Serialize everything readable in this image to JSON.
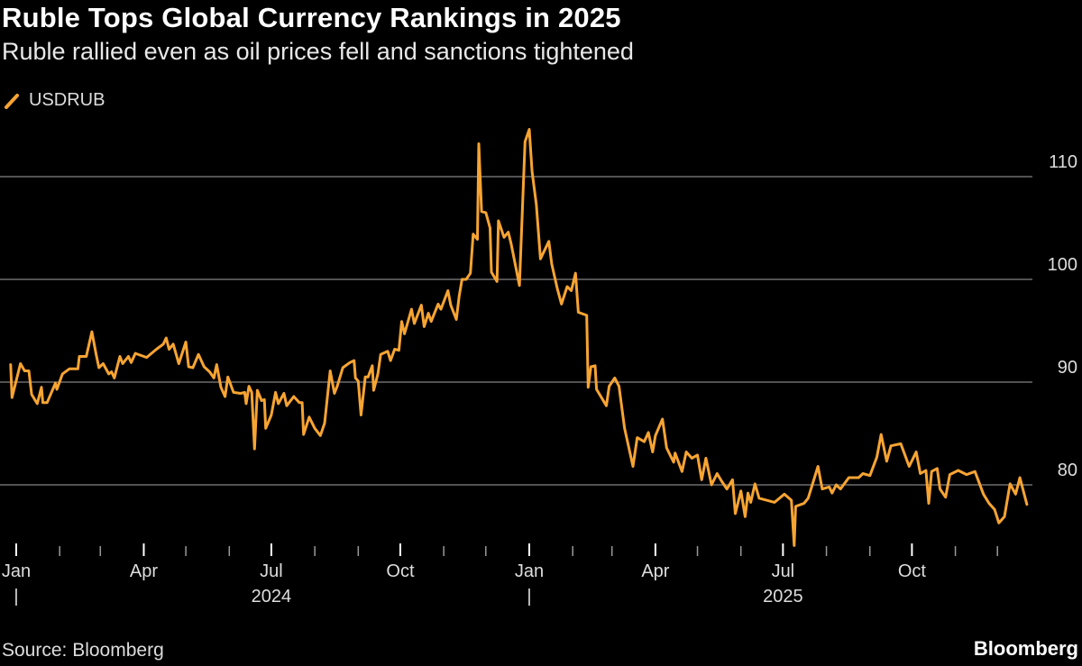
{
  "title": "Ruble Tops Global Currency Rankings in 2025",
  "subtitle": "Ruble rallied even as oil prices fell and sanctions tightened",
  "source": "Source: Bloomberg",
  "logo": "Bloomberg",
  "colors": {
    "series": "#f7a433",
    "grid": "#6e6e6e",
    "background": "#000000"
  },
  "legend_icon": "slash-line-icon",
  "chart_data": {
    "type": "line",
    "title": "Ruble Tops Global Currency Rankings in 2025",
    "xlabel": "",
    "ylabel": "",
    "ylim": [
      73,
      115
    ],
    "yticks": [
      80,
      90,
      100,
      110
    ],
    "ytick_labels": [
      "80",
      "90",
      "100",
      "110"
    ],
    "y_axis_side": "right",
    "grid": true,
    "legend_placement": "top-left",
    "xticks": [
      {
        "date": "2024-01-01",
        "label": "Jan",
        "year": "2024",
        "separator": "|"
      },
      {
        "date": "2024-04-01",
        "label": "Apr"
      },
      {
        "date": "2024-07-01",
        "label": "Jul",
        "year_label": "2024"
      },
      {
        "date": "2024-10-01",
        "label": "Oct"
      },
      {
        "date": "2025-01-01",
        "label": "Jan",
        "separator": "|"
      },
      {
        "date": "2025-04-01",
        "label": "Apr"
      },
      {
        "date": "2025-07-01",
        "label": "Jul",
        "year_label": "2025"
      },
      {
        "date": "2025-10-01",
        "label": "Oct"
      }
    ],
    "year_labels": [
      "2024",
      "2025"
    ],
    "series": [
      {
        "name": "USDRUB",
        "points": [
          [
            "2023-12-28",
            91.7
          ],
          [
            "2023-12-29",
            88.5
          ],
          [
            "2024-01-04",
            91.8
          ],
          [
            "2024-01-07",
            91.1
          ],
          [
            "2024-01-10",
            91.1
          ],
          [
            "2024-01-12",
            88.8
          ],
          [
            "2024-01-16",
            87.9
          ],
          [
            "2024-01-19",
            89.5
          ],
          [
            "2024-01-20",
            88.0
          ],
          [
            "2024-01-23",
            88.0
          ],
          [
            "2024-01-29",
            89.9
          ],
          [
            "2024-01-30",
            89.3
          ],
          [
            "2024-02-03",
            90.8
          ],
          [
            "2024-02-08",
            91.3
          ],
          [
            "2024-02-14",
            91.3
          ],
          [
            "2024-02-15",
            92.5
          ],
          [
            "2024-02-20",
            92.5
          ],
          [
            "2024-02-24",
            94.9
          ],
          [
            "2024-02-27",
            92.7
          ],
          [
            "2024-02-29",
            91.4
          ],
          [
            "2024-03-03",
            91.8
          ],
          [
            "2024-03-07",
            90.8
          ],
          [
            "2024-03-09",
            91.0
          ],
          [
            "2024-03-11",
            90.4
          ],
          [
            "2024-03-15",
            92.5
          ],
          [
            "2024-03-17",
            91.8
          ],
          [
            "2024-03-21",
            92.5
          ],
          [
            "2024-03-23",
            91.9
          ],
          [
            "2024-03-26",
            92.8
          ],
          [
            "2024-04-03",
            92.4
          ],
          [
            "2024-04-10",
            93.2
          ],
          [
            "2024-04-15",
            93.7
          ],
          [
            "2024-04-17",
            94.3
          ],
          [
            "2024-04-19",
            93.2
          ],
          [
            "2024-04-22",
            93.7
          ],
          [
            "2024-04-26",
            91.8
          ],
          [
            "2024-05-01",
            93.9
          ],
          [
            "2024-05-03",
            91.5
          ],
          [
            "2024-05-06",
            91.4
          ],
          [
            "2024-05-10",
            92.7
          ],
          [
            "2024-05-14",
            91.5
          ],
          [
            "2024-05-18",
            91.0
          ],
          [
            "2024-05-21",
            90.4
          ],
          [
            "2024-05-23",
            91.7
          ],
          [
            "2024-05-26",
            89.5
          ],
          [
            "2024-05-29",
            88.6
          ],
          [
            "2024-05-31",
            90.5
          ],
          [
            "2024-06-04",
            89.0
          ],
          [
            "2024-06-09",
            88.9
          ],
          [
            "2024-06-12",
            89.0
          ],
          [
            "2024-06-13",
            87.9
          ],
          [
            "2024-06-15",
            89.6
          ],
          [
            "2024-06-17",
            89.0
          ],
          [
            "2024-06-19",
            83.5
          ],
          [
            "2024-06-21",
            89.2
          ],
          [
            "2024-06-24",
            88.2
          ],
          [
            "2024-06-26",
            88.3
          ],
          [
            "2024-06-27",
            85.5
          ],
          [
            "2024-07-01",
            86.8
          ],
          [
            "2024-07-04",
            89.0
          ],
          [
            "2024-07-06",
            87.9
          ],
          [
            "2024-07-10",
            88.9
          ],
          [
            "2024-07-12",
            87.7
          ],
          [
            "2024-07-17",
            88.6
          ],
          [
            "2024-07-21",
            88.0
          ],
          [
            "2024-07-23",
            88.0
          ],
          [
            "2024-07-24",
            84.9
          ],
          [
            "2024-07-28",
            86.6
          ],
          [
            "2024-08-01",
            85.5
          ],
          [
            "2024-08-05",
            84.8
          ],
          [
            "2024-08-08",
            86.0
          ],
          [
            "2024-08-12",
            91.1
          ],
          [
            "2024-08-15",
            88.9
          ],
          [
            "2024-08-17",
            89.6
          ],
          [
            "2024-08-21",
            91.4
          ],
          [
            "2024-08-26",
            91.9
          ],
          [
            "2024-08-29",
            92.1
          ],
          [
            "2024-08-30",
            90.4
          ],
          [
            "2024-09-01",
            90.1
          ],
          [
            "2024-09-03",
            86.8
          ],
          [
            "2024-09-06",
            90.5
          ],
          [
            "2024-09-08",
            90.5
          ],
          [
            "2024-09-11",
            91.6
          ],
          [
            "2024-09-12",
            89.2
          ],
          [
            "2024-09-15",
            90.8
          ],
          [
            "2024-09-17",
            92.7
          ],
          [
            "2024-09-22",
            93.0
          ],
          [
            "2024-09-24",
            92.1
          ],
          [
            "2024-09-27",
            93.2
          ],
          [
            "2024-09-30",
            93.1
          ],
          [
            "2024-10-02",
            95.9
          ],
          [
            "2024-10-04",
            94.7
          ],
          [
            "2024-10-09",
            97.1
          ],
          [
            "2024-10-11",
            95.7
          ],
          [
            "2024-10-16",
            97.5
          ],
          [
            "2024-10-18",
            95.4
          ],
          [
            "2024-10-21",
            96.7
          ],
          [
            "2024-10-23",
            95.9
          ],
          [
            "2024-10-28",
            97.6
          ],
          [
            "2024-10-30",
            97.1
          ],
          [
            "2024-11-04",
            98.9
          ],
          [
            "2024-11-06",
            97.5
          ],
          [
            "2024-11-10",
            96.1
          ],
          [
            "2024-11-12",
            98.4
          ],
          [
            "2024-11-14",
            100.0
          ],
          [
            "2024-11-17",
            100.0
          ],
          [
            "2024-11-20",
            100.6
          ],
          [
            "2024-11-22",
            104.4
          ],
          [
            "2024-11-25",
            103.9
          ],
          [
            "2024-11-26",
            113.2
          ],
          [
            "2024-11-28",
            106.6
          ],
          [
            "2024-12-01",
            106.5
          ],
          [
            "2024-12-04",
            105.0
          ],
          [
            "2024-12-05",
            100.7
          ],
          [
            "2024-12-09",
            99.8
          ],
          [
            "2024-12-10",
            105.7
          ],
          [
            "2024-12-14",
            104.1
          ],
          [
            "2024-12-17",
            104.6
          ],
          [
            "2024-12-19",
            103.5
          ],
          [
            "2024-12-25",
            99.4
          ],
          [
            "2024-12-29",
            113.4
          ],
          [
            "2025-01-01",
            114.6
          ],
          [
            "2025-01-03",
            110.5
          ],
          [
            "2025-01-06",
            107.3
          ],
          [
            "2025-01-09",
            102.0
          ],
          [
            "2025-01-15",
            103.7
          ],
          [
            "2025-01-17",
            101.5
          ],
          [
            "2025-01-21",
            99.1
          ],
          [
            "2025-01-24",
            97.6
          ],
          [
            "2025-01-28",
            99.3
          ],
          [
            "2025-01-31",
            98.9
          ],
          [
            "2025-02-03",
            100.6
          ],
          [
            "2025-02-05",
            96.8
          ],
          [
            "2025-02-11",
            96.5
          ],
          [
            "2025-02-12",
            89.5
          ],
          [
            "2025-02-14",
            91.5
          ],
          [
            "2025-02-17",
            91.6
          ],
          [
            "2025-02-18",
            89.3
          ],
          [
            "2025-02-25",
            87.7
          ],
          [
            "2025-02-27",
            89.6
          ],
          [
            "2025-03-03",
            90.4
          ],
          [
            "2025-03-06",
            89.6
          ],
          [
            "2025-03-10",
            85.5
          ],
          [
            "2025-03-16",
            81.8
          ],
          [
            "2025-03-19",
            84.6
          ],
          [
            "2025-03-24",
            84.2
          ],
          [
            "2025-03-27",
            85.1
          ],
          [
            "2025-03-30",
            83.2
          ],
          [
            "2025-04-01",
            84.8
          ],
          [
            "2025-04-06",
            86.4
          ],
          [
            "2025-04-09",
            83.6
          ],
          [
            "2025-04-14",
            82.2
          ],
          [
            "2025-04-15",
            83.1
          ],
          [
            "2025-04-20",
            81.3
          ],
          [
            "2025-04-23",
            83.2
          ],
          [
            "2025-04-27",
            82.6
          ],
          [
            "2025-05-01",
            82.9
          ],
          [
            "2025-05-04",
            80.5
          ],
          [
            "2025-05-07",
            82.6
          ],
          [
            "2025-05-11",
            80.0
          ],
          [
            "2025-05-15",
            81.1
          ],
          [
            "2025-05-18",
            80.4
          ],
          [
            "2025-05-22",
            79.6
          ],
          [
            "2025-05-26",
            80.5
          ],
          [
            "2025-05-28",
            77.2
          ],
          [
            "2025-06-01",
            79.4
          ],
          [
            "2025-06-04",
            76.9
          ],
          [
            "2025-06-06",
            79.2
          ],
          [
            "2025-06-08",
            78.3
          ],
          [
            "2025-06-11",
            80.1
          ],
          [
            "2025-06-14",
            78.7
          ],
          [
            "2025-06-25",
            78.3
          ],
          [
            "2025-07-02",
            79.1
          ],
          [
            "2025-07-07",
            78.5
          ],
          [
            "2025-07-09",
            74.1
          ],
          [
            "2025-07-10",
            77.9
          ],
          [
            "2025-07-16",
            78.2
          ],
          [
            "2025-07-19",
            78.7
          ],
          [
            "2025-07-26",
            81.8
          ],
          [
            "2025-07-29",
            79.6
          ],
          [
            "2025-08-03",
            79.8
          ],
          [
            "2025-08-05",
            79.2
          ],
          [
            "2025-08-08",
            80.0
          ],
          [
            "2025-08-11",
            79.6
          ],
          [
            "2025-08-17",
            80.7
          ],
          [
            "2025-08-24",
            80.7
          ],
          [
            "2025-08-27",
            81.1
          ],
          [
            "2025-09-01",
            80.9
          ],
          [
            "2025-09-06",
            82.7
          ],
          [
            "2025-09-09",
            84.9
          ],
          [
            "2025-09-13",
            82.3
          ],
          [
            "2025-09-16",
            83.8
          ],
          [
            "2025-09-23",
            84.0
          ],
          [
            "2025-09-29",
            81.8
          ],
          [
            "2025-10-04",
            83.2
          ],
          [
            "2025-10-07",
            81.1
          ],
          [
            "2025-10-11",
            81.4
          ],
          [
            "2025-10-13",
            78.2
          ],
          [
            "2025-10-15",
            81.3
          ],
          [
            "2025-10-19",
            81.6
          ],
          [
            "2025-10-21",
            79.6
          ],
          [
            "2025-10-25",
            78.8
          ],
          [
            "2025-10-28",
            81.0
          ],
          [
            "2025-11-03",
            81.4
          ],
          [
            "2025-11-09",
            81.0
          ],
          [
            "2025-11-15",
            81.3
          ],
          [
            "2025-11-21",
            79.1
          ],
          [
            "2025-11-25",
            78.2
          ],
          [
            "2025-11-29",
            77.6
          ],
          [
            "2025-12-02",
            76.3
          ],
          [
            "2025-12-06",
            76.9
          ],
          [
            "2025-12-10",
            80.1
          ],
          [
            "2025-12-14",
            79.1
          ],
          [
            "2025-12-17",
            80.7
          ],
          [
            "2025-12-22",
            78.1
          ]
        ]
      }
    ]
  }
}
